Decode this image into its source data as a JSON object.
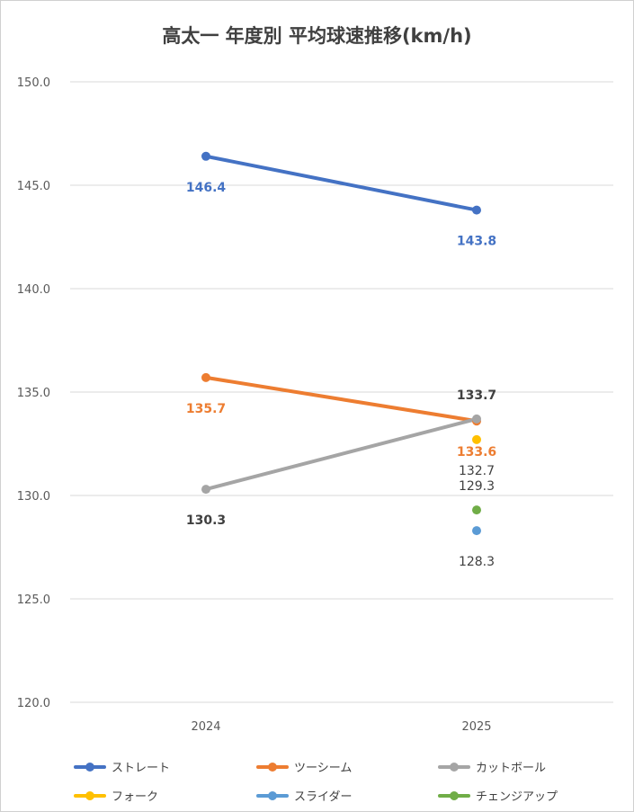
{
  "chart_data": {
    "type": "line",
    "title": "高太一 年度別 平均球速推移(km/h)",
    "xlabel": "",
    "ylabel": "",
    "categories": [
      "2024",
      "2025"
    ],
    "ylim": [
      120,
      150
    ],
    "yticks": [
      "120.0",
      "125.0",
      "130.0",
      "135.0",
      "140.0",
      "145.0",
      "150.0"
    ],
    "grid": true,
    "legend_position": "bottom",
    "series": [
      {
        "name": "ストレート",
        "color": "#4472C4",
        "values": [
          146.4,
          143.8
        ],
        "labels": [
          "146.4",
          "143.8"
        ],
        "label_color": "#4472C4",
        "label_pos": [
          "below",
          "below"
        ],
        "label_bold": true
      },
      {
        "name": "ツーシーム",
        "color": "#ED7D31",
        "values": [
          135.7,
          133.6
        ],
        "labels": [
          "135.7",
          "133.6"
        ],
        "label_color": "#ED7D31",
        "label_pos": [
          "below",
          "below"
        ],
        "label_bold": true
      },
      {
        "name": "カットボール",
        "color": "#A5A5A5",
        "values": [
          130.3,
          133.7
        ],
        "labels": [
          "130.3",
          "133.7"
        ],
        "label_color": "#404040",
        "label_pos": [
          "below",
          "above"
        ],
        "label_bold": true
      },
      {
        "name": "フォーク",
        "color": "#FFC000",
        "values": [
          null,
          132.7
        ],
        "labels": [
          null,
          "132.7"
        ],
        "label_color": "#404040",
        "label_pos": [
          null,
          "below"
        ],
        "label_bold": false
      },
      {
        "name": "スライダー",
        "color": "#5B9BD5",
        "values": [
          null,
          128.3
        ],
        "labels": [
          null,
          "128.3"
        ],
        "label_color": "#404040",
        "label_pos": [
          null,
          "below"
        ],
        "label_bold": false
      },
      {
        "name": "チェンジアップ",
        "color": "#70AD47",
        "values": [
          null,
          129.3
        ],
        "labels": [
          null,
          "129.3"
        ],
        "label_color": "#404040",
        "label_pos": [
          null,
          "above"
        ],
        "label_bold": false
      }
    ]
  }
}
